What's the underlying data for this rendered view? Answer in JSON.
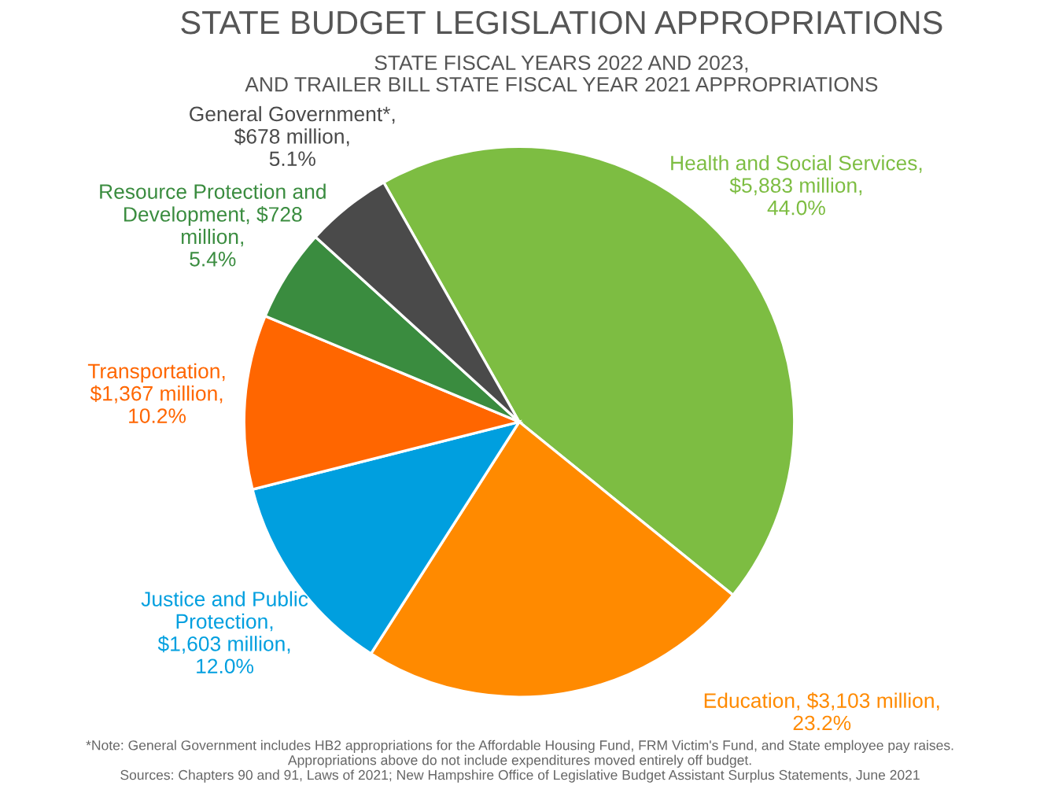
{
  "chart_data": {
    "type": "pie",
    "title": "STATE BUDGET LEGISLATION APPROPRIATIONS",
    "subtitle": "STATE FISCAL YEARS 2022 AND 2023,\nAND TRAILER BILL STATE FISCAL YEAR 2021 APPROPRIATIONS",
    "categories": [
      "Health and Social Services,\n$5,883 million,\n44.0%",
      "Education, $3,103 million,\n23.2%",
      "Justice and Public\nProtection,\n$1,603 million,\n12.0%",
      "Transportation,\n$1,367 million,\n10.2%",
      "Resource Protection and\nDevelopment, $728\nmillion,\n5.4%",
      "General Government*,\n$678 million,\n5.1%"
    ],
    "values": [
      5883,
      3103,
      1603,
      1367,
      728,
      678
    ],
    "colors": [
      "#7dbd42",
      "#ff8a00",
      "#009fdf",
      "#ff6600",
      "#3a8c3f",
      "#4a4a4a"
    ],
    "annotations": [
      "*Note: General Government includes HB2 appropriations for the Affordable Housing Fund, FRM Victim's Fund, and State employee pay raises.\nAppropriations above do not include expenditures moved entirely off budget.\nSources: Chapters 90 and 91, Laws of 2021; New Hampshire Office of Legislative Budget Assistant Surplus Statements, June 2021"
    ]
  }
}
